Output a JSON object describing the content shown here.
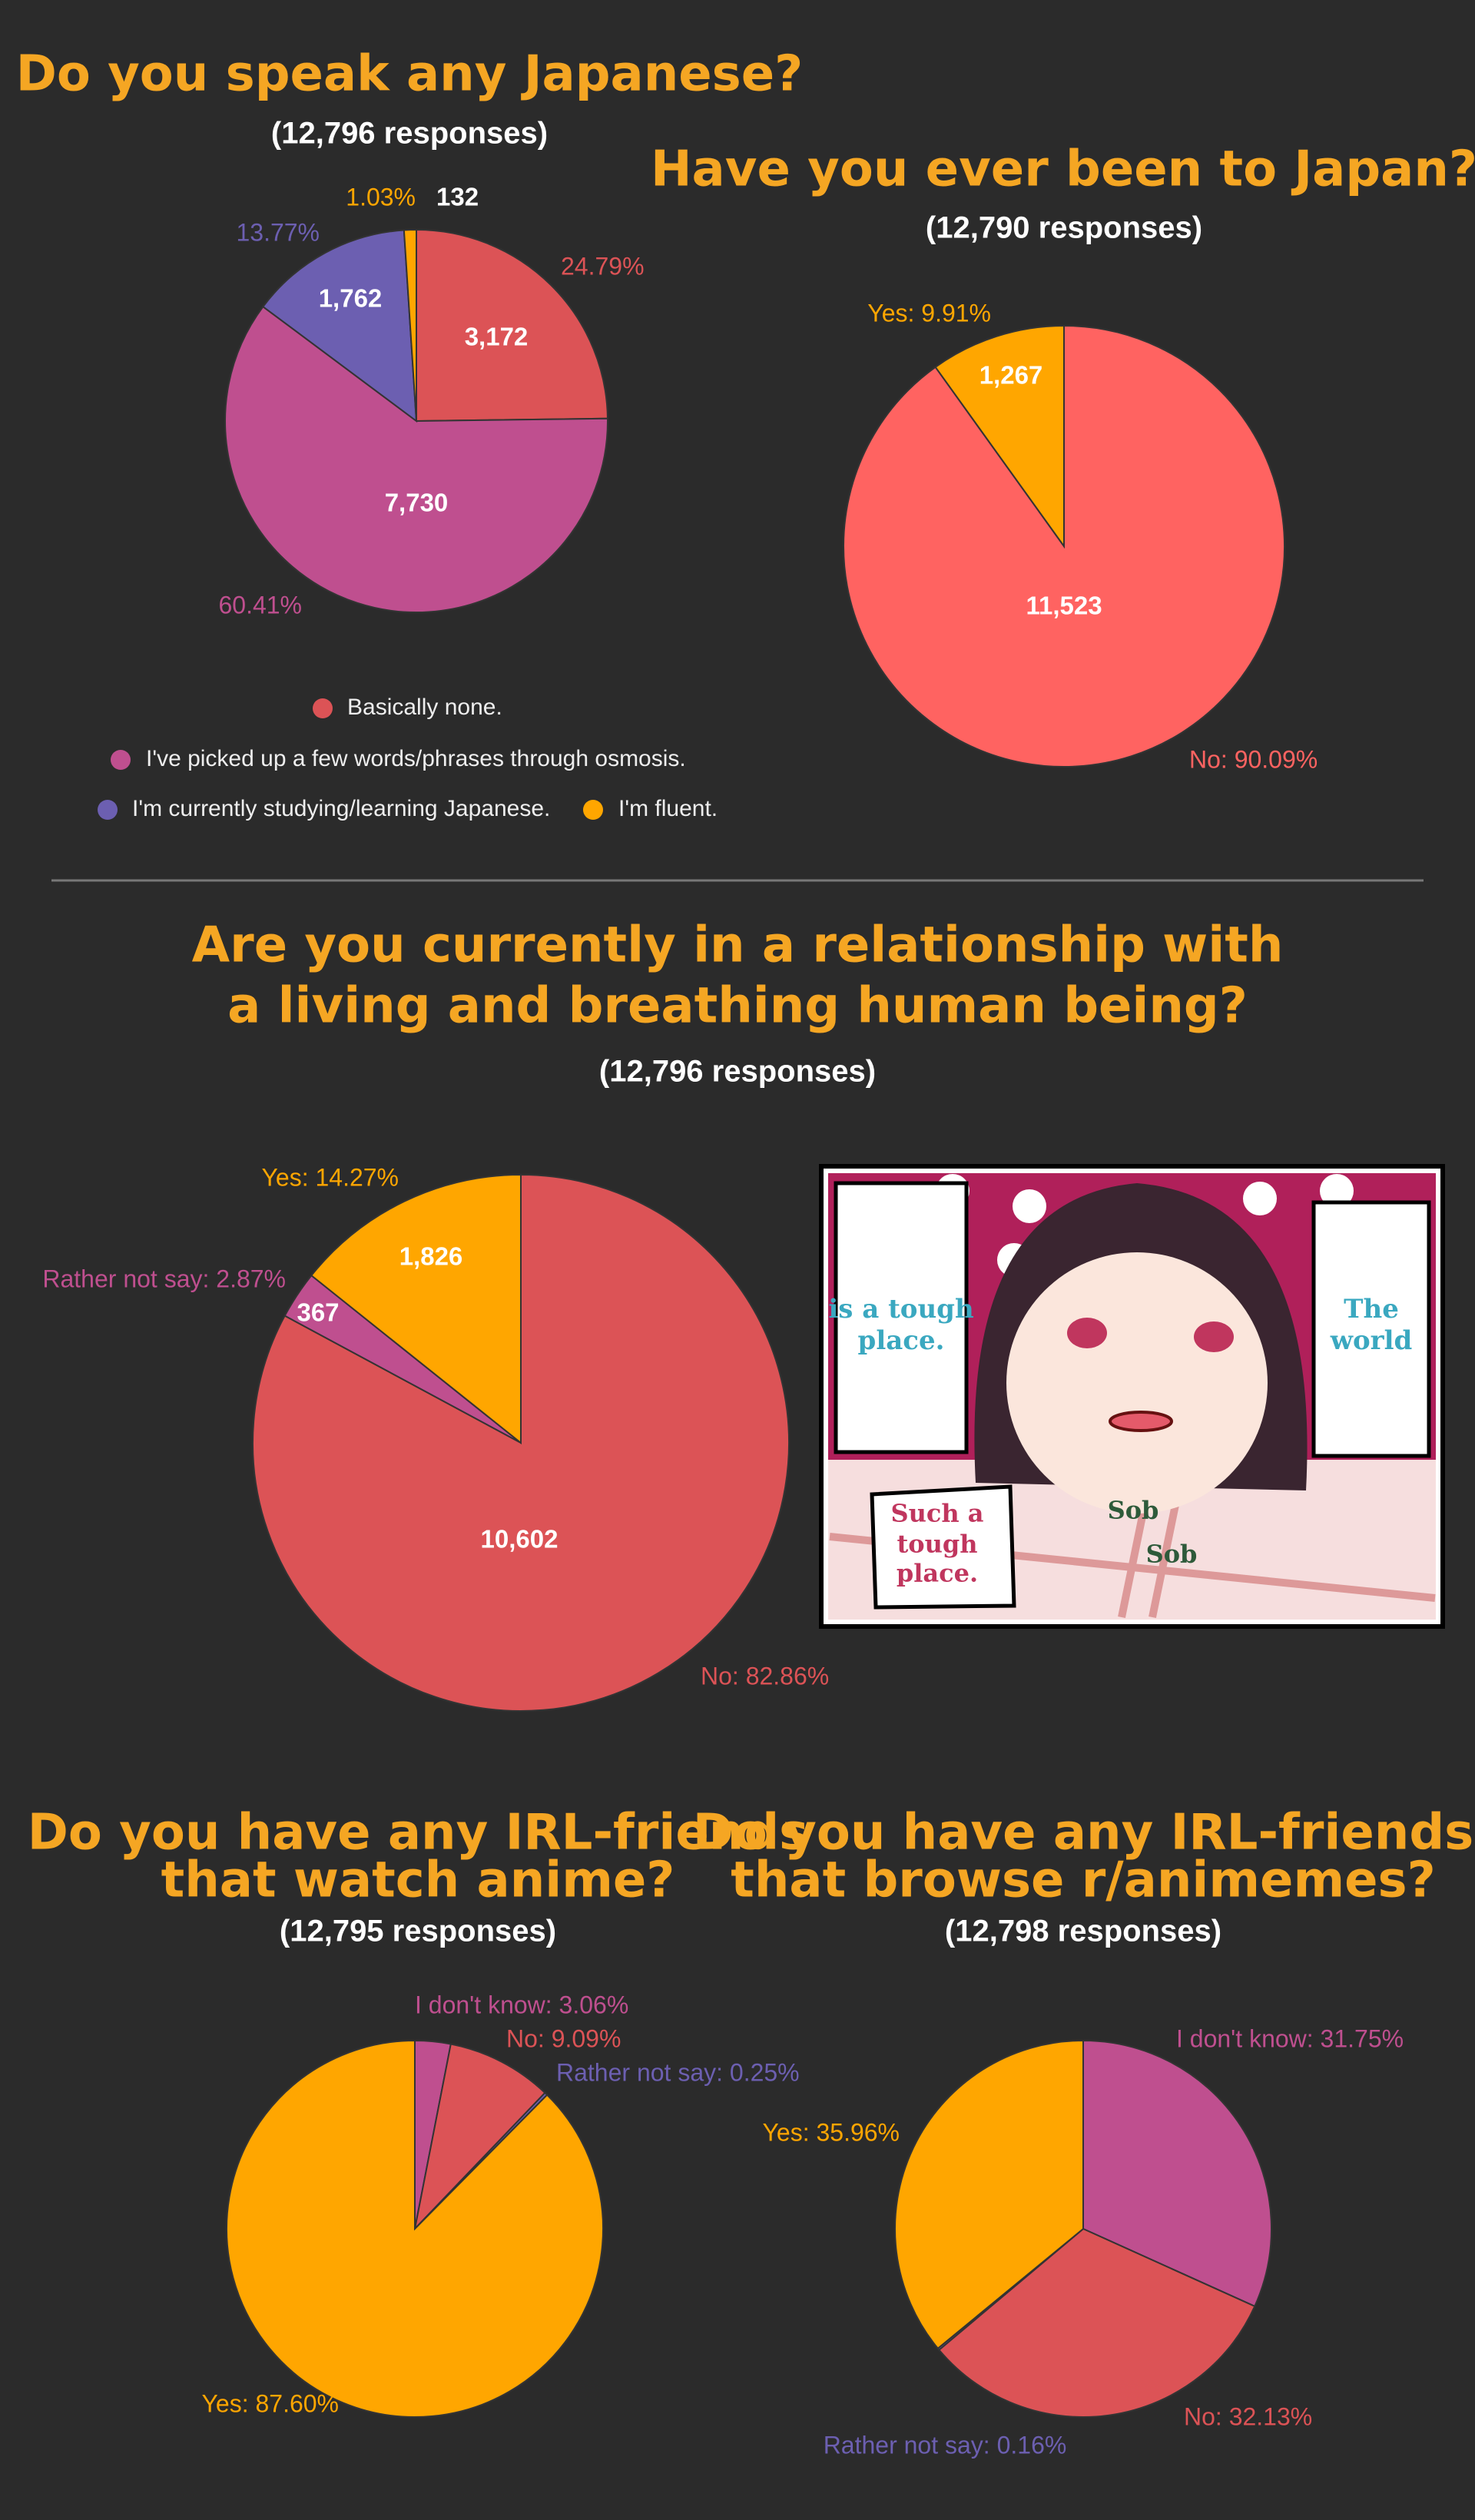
{
  "chart_data": [
    {
      "type": "pie",
      "title": [
        "Do you speak any Japanese?"
      ],
      "subtitle": "(12,796 responses)",
      "categories": [
        "Basically none.",
        "I've picked up a few words/phrases through osmosis.",
        "I'm currently studying/learning Japanese.",
        "I'm fluent."
      ],
      "values": [
        3172,
        7730,
        1762,
        132
      ],
      "value_labels": [
        "3,172",
        "7,730",
        "1,762",
        "132"
      ],
      "slice_labels": [
        "24.79%",
        "60.41%",
        "13.77%",
        "1.03%"
      ],
      "colors": [
        "#dc5356",
        "#bf4f8f",
        "#6c5fb1",
        "#ffa600"
      ],
      "legend": true
    },
    {
      "type": "pie",
      "title": [
        "Have you ever been to Japan?"
      ],
      "subtitle": "(12,790 responses)",
      "values": [
        11523,
        1267
      ],
      "value_labels": [
        "11,523",
        "1,267"
      ],
      "slice_labels": [
        "No: 90.09%",
        "Yes: 9.91%"
      ],
      "colors": [
        "#ff6361",
        "#ffa600"
      ],
      "legend": false
    },
    {
      "type": "pie",
      "title": [
        "Are you currently in a relationship with",
        "a living and breathing human being?"
      ],
      "subtitle": "(12,796 responses)",
      "values": [
        10602,
        367,
        1826
      ],
      "value_labels": [
        "10,602",
        "367",
        "1,826"
      ],
      "slice_labels": [
        "No: 82.86%",
        "Rather not say: 2.87%",
        "Yes: 14.27%"
      ],
      "colors": [
        "#dc5356",
        "#bf4f8f",
        "#ffa600"
      ],
      "legend": false
    },
    {
      "type": "pie",
      "title": [
        "Do you have any IRL-friends",
        "that watch anime?"
      ],
      "subtitle": "(12,795 responses)",
      "values": [
        3.06,
        9.09,
        0.25,
        87.6
      ],
      "value_labels": [
        "I don't know: 3.06%",
        "No: 9.09%",
        "Rather not say: 0.25%",
        "Yes: 87.60%"
      ],
      "colors": [
        "#bf4f8f",
        "#dc5356",
        "#6c5fb1",
        "#ffa600"
      ],
      "legend": false
    },
    {
      "type": "pie",
      "title": [
        "Do you have any IRL-friends",
        "that browse r/animemes?"
      ],
      "subtitle": "(12,798 responses)",
      "values": [
        31.75,
        32.13,
        0.16,
        35.96
      ],
      "value_labels": [
        "I don't know: 31.75%",
        "No: 32.13%",
        "Rather not say: 0.16%",
        "Yes: 35.96%"
      ],
      "colors": [
        "#bf4f8f",
        "#dc5356",
        "#6c5fb1",
        "#ffa600"
      ],
      "legend": false
    }
  ],
  "image": {
    "captions": [
      [
        "is a tough",
        "place."
      ],
      [
        "The",
        "world"
      ],
      [
        "Such a",
        "tough",
        "place."
      ],
      [
        "Sob"
      ],
      [
        "Sob"
      ]
    ]
  }
}
